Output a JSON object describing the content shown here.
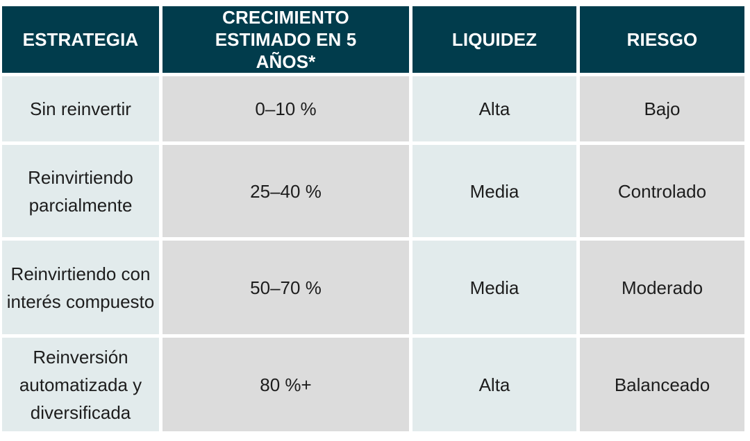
{
  "table": {
    "headers": [
      "ESTRATEGIA",
      "CRECIMIENTO ESTIMADO EN 5 AÑOS*",
      "LIQUIDEZ",
      "RIESGO"
    ],
    "rows": [
      [
        "Sin reinvertir",
        "0–10 %",
        "Alta",
        "Bajo"
      ],
      [
        "Reinvirtiendo parcialmente",
        "25–40 %",
        "Media",
        "Controlado"
      ],
      [
        "Reinvirtiendo con interés compuesto",
        "50–70 %",
        "Media",
        "Moderado"
      ],
      [
        "Reinversión automatizada y diversificada",
        "80 %+",
        "Alta",
        "Balanceado"
      ]
    ]
  },
  "colors": {
    "header_bg": "#013c4c",
    "header_text": "#ffffff",
    "cell_light": "#e2ebec",
    "cell_gray": "#dcdcdc",
    "cell_text": "#1d1d1d"
  }
}
